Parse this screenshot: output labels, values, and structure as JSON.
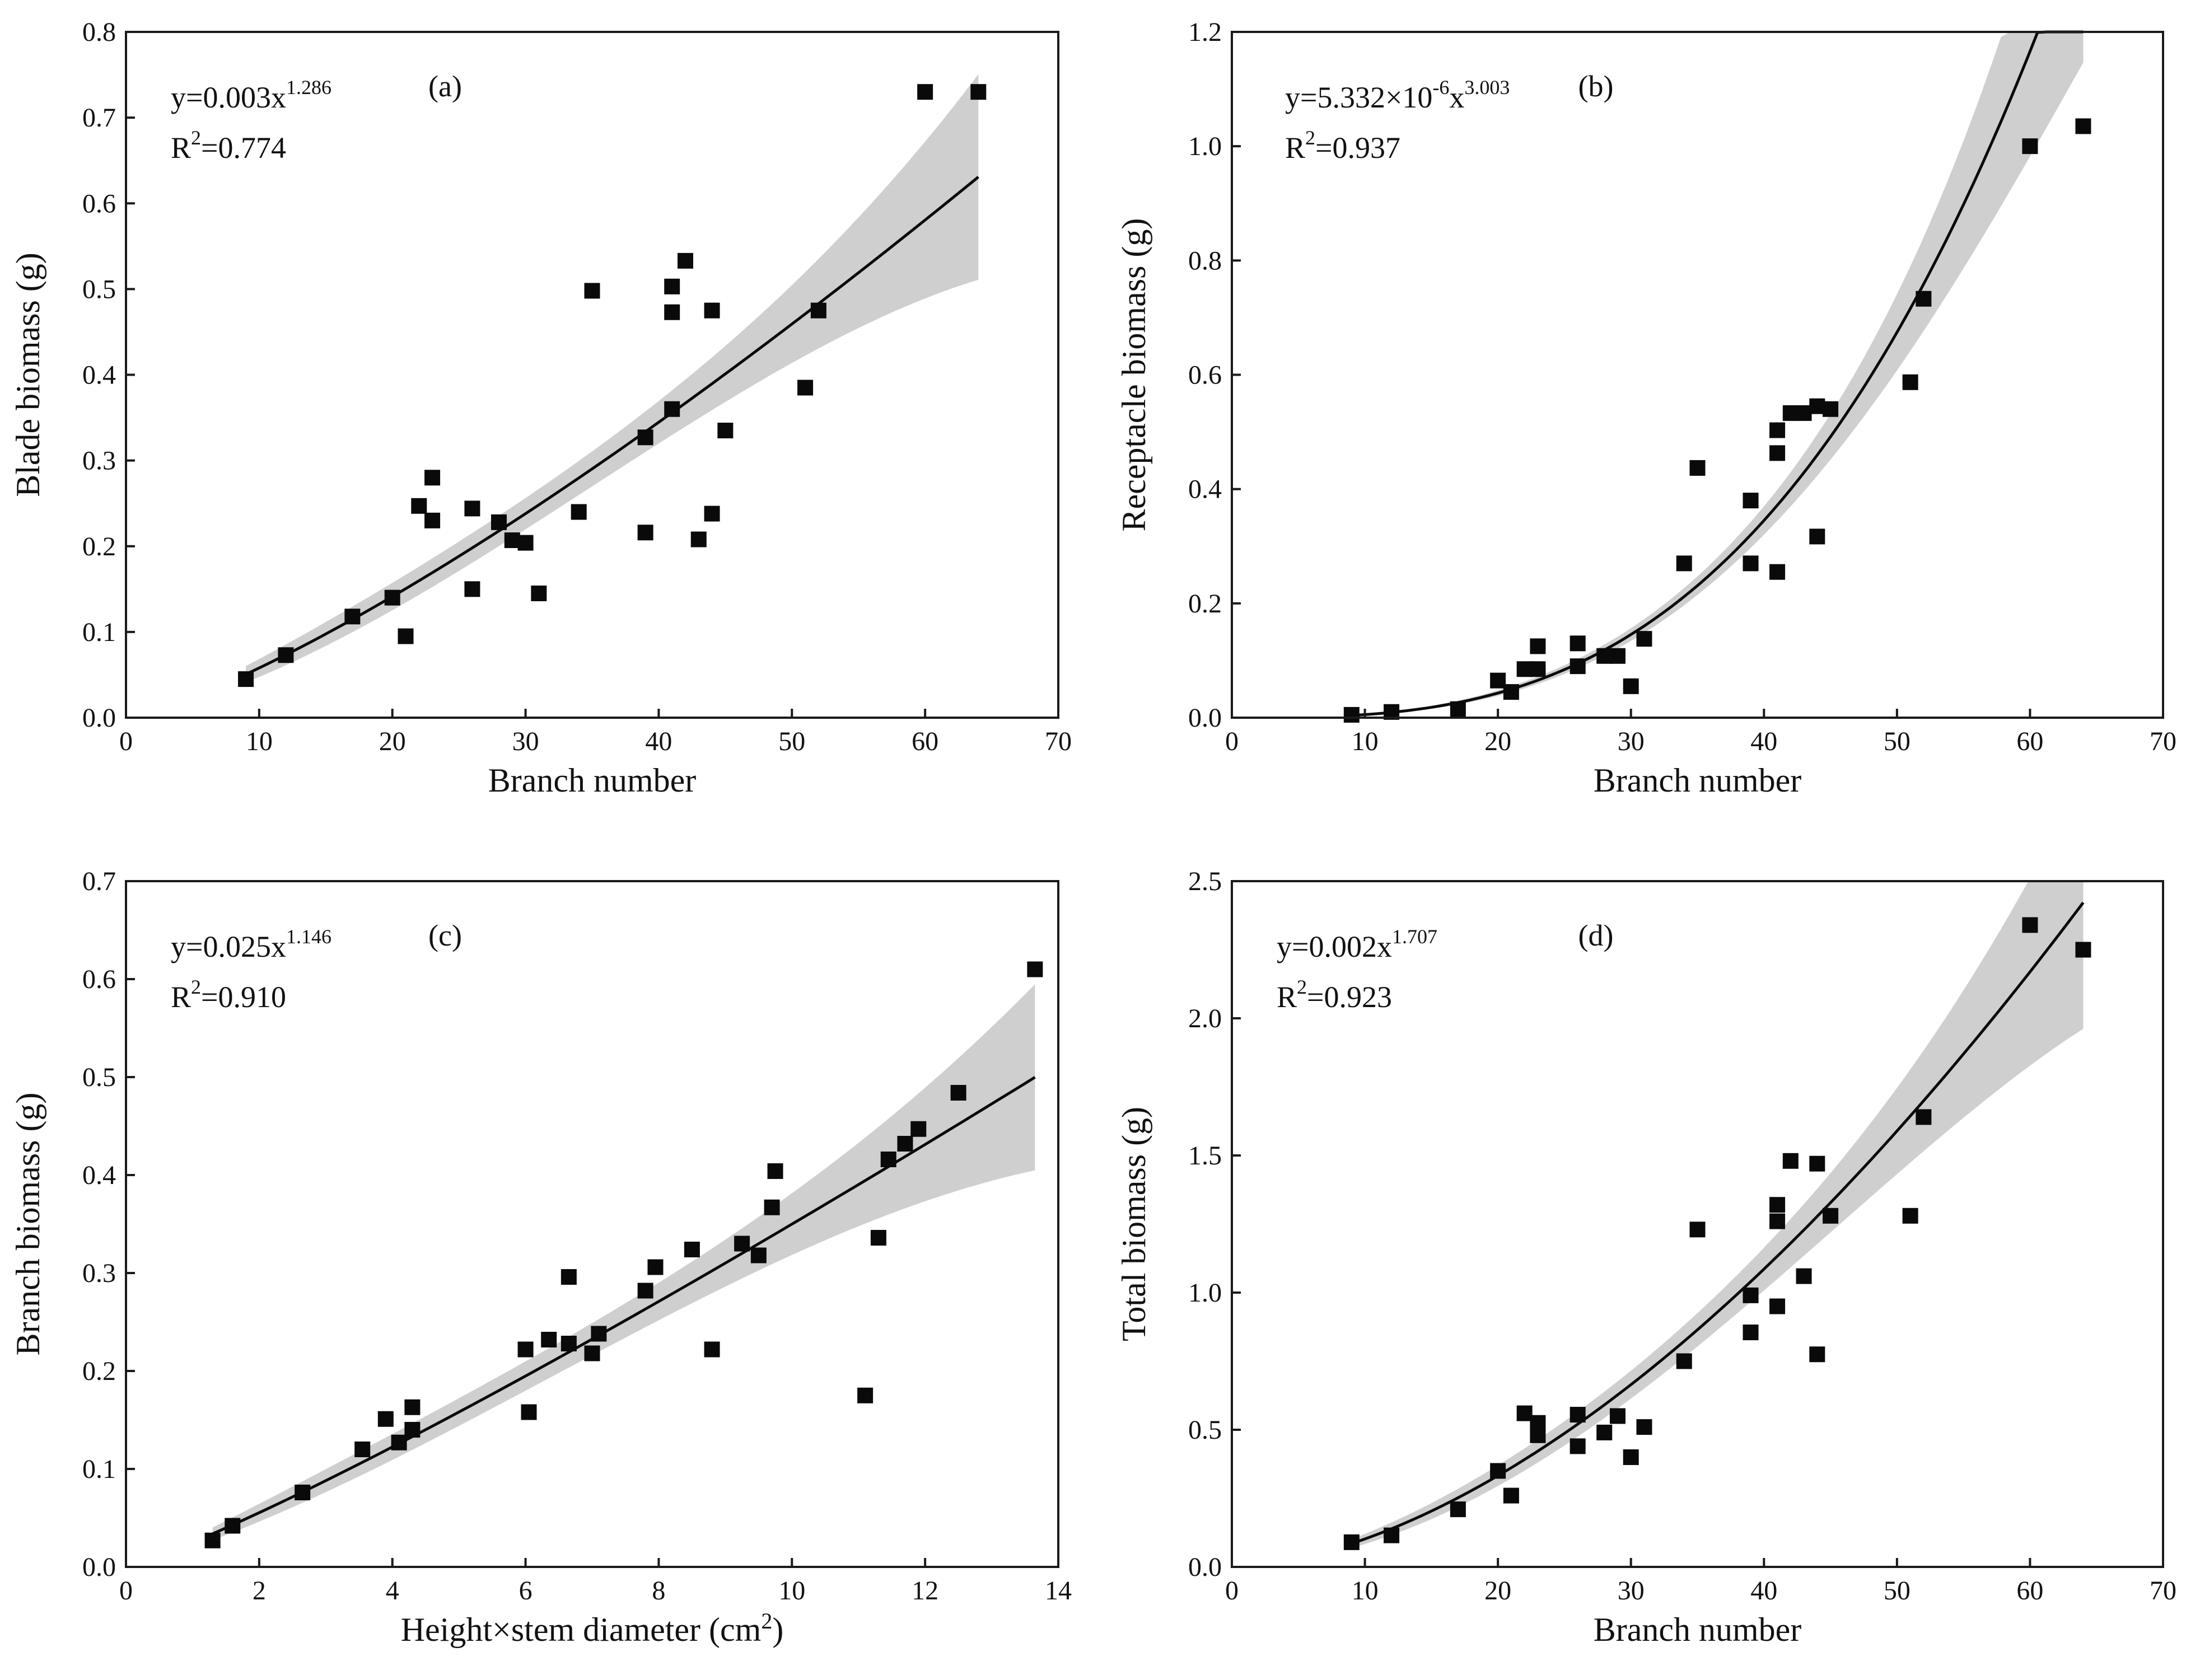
{
  "chart_data": [
    {
      "id": "a",
      "type": "scatter",
      "panel_label": "(a)",
      "xlabel": "Branch number",
      "ylabel": "Blade biomass (g)",
      "xlim": [
        0,
        70
      ],
      "ylim": [
        0,
        0.8
      ],
      "xticks": [
        "0",
        "10",
        "20",
        "30",
        "40",
        "50",
        "60",
        "70"
      ],
      "yticks": [
        "0.0",
        "0.1",
        "0.2",
        "0.3",
        "0.4",
        "0.5",
        "0.6",
        "0.7",
        "0.8"
      ],
      "equation": {
        "prefix": "y=0.003x",
        "exponent": "1.286",
        "r2_prefix": "R",
        "r2_sup": "2",
        "r2_value": "=0.774"
      },
      "fit": {
        "model": "power",
        "a": 0.003,
        "b": 1.286,
        "x_range": [
          9,
          64
        ]
      },
      "points": [
        [
          9,
          0.045
        ],
        [
          12,
          0.073
        ],
        [
          17,
          0.118
        ],
        [
          20,
          0.14
        ],
        [
          21,
          0.095
        ],
        [
          22,
          0.247
        ],
        [
          23,
          0.28
        ],
        [
          23,
          0.23
        ],
        [
          26,
          0.244
        ],
        [
          26,
          0.15
        ],
        [
          28,
          0.228
        ],
        [
          29,
          0.207
        ],
        [
          30,
          0.204
        ],
        [
          31,
          0.145
        ],
        [
          34,
          0.24
        ],
        [
          35,
          0.498
        ],
        [
          39,
          0.327
        ],
        [
          39,
          0.216
        ],
        [
          41,
          0.503
        ],
        [
          41,
          0.473
        ],
        [
          41,
          0.36
        ],
        [
          42,
          0.533
        ],
        [
          43,
          0.208
        ],
        [
          44,
          0.475
        ],
        [
          44,
          0.238
        ],
        [
          45,
          0.335
        ],
        [
          51,
          0.385
        ],
        [
          52,
          0.475
        ],
        [
          60,
          0.73
        ],
        [
          64,
          0.73
        ]
      ]
    },
    {
      "id": "b",
      "type": "scatter",
      "panel_label": "(b)",
      "xlabel": "Branch number",
      "ylabel": "Receptacle biomass (g)",
      "xlim": [
        0,
        70
      ],
      "ylim": [
        0,
        1.2
      ],
      "xticks": [
        "0",
        "10",
        "20",
        "30",
        "40",
        "50",
        "60",
        "70"
      ],
      "yticks": [
        "0.0",
        "0.2",
        "0.4",
        "0.6",
        "0.8",
        "1.0",
        "1.2"
      ],
      "equation": {
        "prefix": "y=5.332×10",
        "exponent_mid": "-6",
        "mid": "x",
        "exponent": "3.003",
        "r2_prefix": "R",
        "r2_sup": "2",
        "r2_value": "=0.937"
      },
      "fit": {
        "model": "power",
        "a": 5.332e-06,
        "b": 3.003,
        "x_range": [
          9,
          64
        ]
      },
      "points": [
        [
          9,
          0.005
        ],
        [
          12,
          0.01
        ],
        [
          17,
          0.015
        ],
        [
          20,
          0.065
        ],
        [
          21,
          0.045
        ],
        [
          22,
          0.085
        ],
        [
          23,
          0.125
        ],
        [
          23,
          0.085
        ],
        [
          26,
          0.13
        ],
        [
          26,
          0.09
        ],
        [
          28,
          0.108
        ],
        [
          29,
          0.108
        ],
        [
          30,
          0.055
        ],
        [
          31,
          0.138
        ],
        [
          34,
          0.27
        ],
        [
          35,
          0.437
        ],
        [
          39,
          0.38
        ],
        [
          39,
          0.27
        ],
        [
          41,
          0.503
        ],
        [
          41,
          0.463
        ],
        [
          41,
          0.255
        ],
        [
          42,
          0.533
        ],
        [
          43,
          0.533
        ],
        [
          44,
          0.545
        ],
        [
          44,
          0.317
        ],
        [
          45,
          0.54
        ],
        [
          51,
          0.587
        ],
        [
          52,
          0.733
        ],
        [
          60,
          1.0
        ],
        [
          64,
          1.035
        ]
      ]
    },
    {
      "id": "c",
      "type": "scatter",
      "panel_label": "(c)",
      "xlabel": "Height×stem diameter (cm",
      "xlabel_sup": "2",
      "xlabel_suffix": ")",
      "ylabel": "Branch biomass (g)",
      "xlim": [
        0,
        14
      ],
      "ylim": [
        0,
        0.7
      ],
      "xticks": [
        "0",
        "2",
        "4",
        "6",
        "8",
        "10",
        "12",
        "14"
      ],
      "yticks": [
        "0.0",
        "0.1",
        "0.2",
        "0.3",
        "0.4",
        "0.5",
        "0.6",
        "0.7"
      ],
      "equation": {
        "prefix": "y=0.025x",
        "exponent": "1.146",
        "r2_prefix": "R",
        "r2_sup": "2",
        "r2_value": "=0.910"
      },
      "fit": {
        "model": "power",
        "a": 0.025,
        "b": 1.146,
        "x_range": [
          1.3,
          13.65
        ]
      },
      "points": [
        [
          1.3,
          0.027
        ],
        [
          1.6,
          0.042
        ],
        [
          2.65,
          0.076
        ],
        [
          3.55,
          0.12
        ],
        [
          3.9,
          0.151
        ],
        [
          4.1,
          0.127
        ],
        [
          4.3,
          0.163
        ],
        [
          4.3,
          0.14
        ],
        [
          6.0,
          0.222
        ],
        [
          6.05,
          0.158
        ],
        [
          6.35,
          0.232
        ],
        [
          6.65,
          0.296
        ],
        [
          6.65,
          0.228
        ],
        [
          7.0,
          0.218
        ],
        [
          7.1,
          0.238
        ],
        [
          7.8,
          0.282
        ],
        [
          7.95,
          0.306
        ],
        [
          8.5,
          0.324
        ],
        [
          8.8,
          0.222
        ],
        [
          9.25,
          0.33
        ],
        [
          9.5,
          0.318
        ],
        [
          9.7,
          0.367
        ],
        [
          9.75,
          0.404
        ],
        [
          11.1,
          0.175
        ],
        [
          11.3,
          0.336
        ],
        [
          11.45,
          0.416
        ],
        [
          11.7,
          0.432
        ],
        [
          11.9,
          0.447
        ],
        [
          12.5,
          0.484
        ],
        [
          13.65,
          0.61
        ]
      ]
    },
    {
      "id": "d",
      "type": "scatter",
      "panel_label": "(d)",
      "xlabel": "Branch number",
      "ylabel": "Total biomass (g)",
      "xlim": [
        0,
        70
      ],
      "ylim": [
        0,
        2.5
      ],
      "xticks": [
        "0",
        "10",
        "20",
        "30",
        "40",
        "50",
        "60",
        "70"
      ],
      "yticks": [
        "0.0",
        "0.5",
        "1.0",
        "1.5",
        "2.0",
        "2.5"
      ],
      "equation": {
        "prefix": "y=0.002x",
        "exponent": "1.707",
        "r2_prefix": "R",
        "r2_sup": "2",
        "r2_value": "=0.923"
      },
      "fit": {
        "model": "power",
        "a": 0.002,
        "b": 1.707,
        "x_range": [
          9,
          64
        ]
      },
      "points": [
        [
          9,
          0.09
        ],
        [
          12,
          0.115
        ],
        [
          17,
          0.21
        ],
        [
          20,
          0.35
        ],
        [
          21,
          0.26
        ],
        [
          22,
          0.56
        ],
        [
          23,
          0.525
        ],
        [
          23,
          0.48
        ],
        [
          26,
          0.555
        ],
        [
          26,
          0.44
        ],
        [
          28,
          0.49
        ],
        [
          29,
          0.55
        ],
        [
          30,
          0.4
        ],
        [
          31,
          0.51
        ],
        [
          34,
          0.75
        ],
        [
          35,
          1.23
        ],
        [
          39,
          0.99
        ],
        [
          39,
          0.855
        ],
        [
          41,
          1.32
        ],
        [
          41,
          1.26
        ],
        [
          41,
          0.95
        ],
        [
          42,
          1.48
        ],
        [
          43,
          1.06
        ],
        [
          44,
          1.47
        ],
        [
          44,
          0.775
        ],
        [
          45,
          1.28
        ],
        [
          51,
          1.28
        ],
        [
          52,
          1.64
        ],
        [
          60,
          2.34
        ],
        [
          64,
          2.25
        ]
      ]
    }
  ],
  "colors": {
    "points": "#0a0a0a",
    "fit_line": "#0a0a0a",
    "band": "#cfcfcf",
    "axis": "#1a1a1a"
  }
}
